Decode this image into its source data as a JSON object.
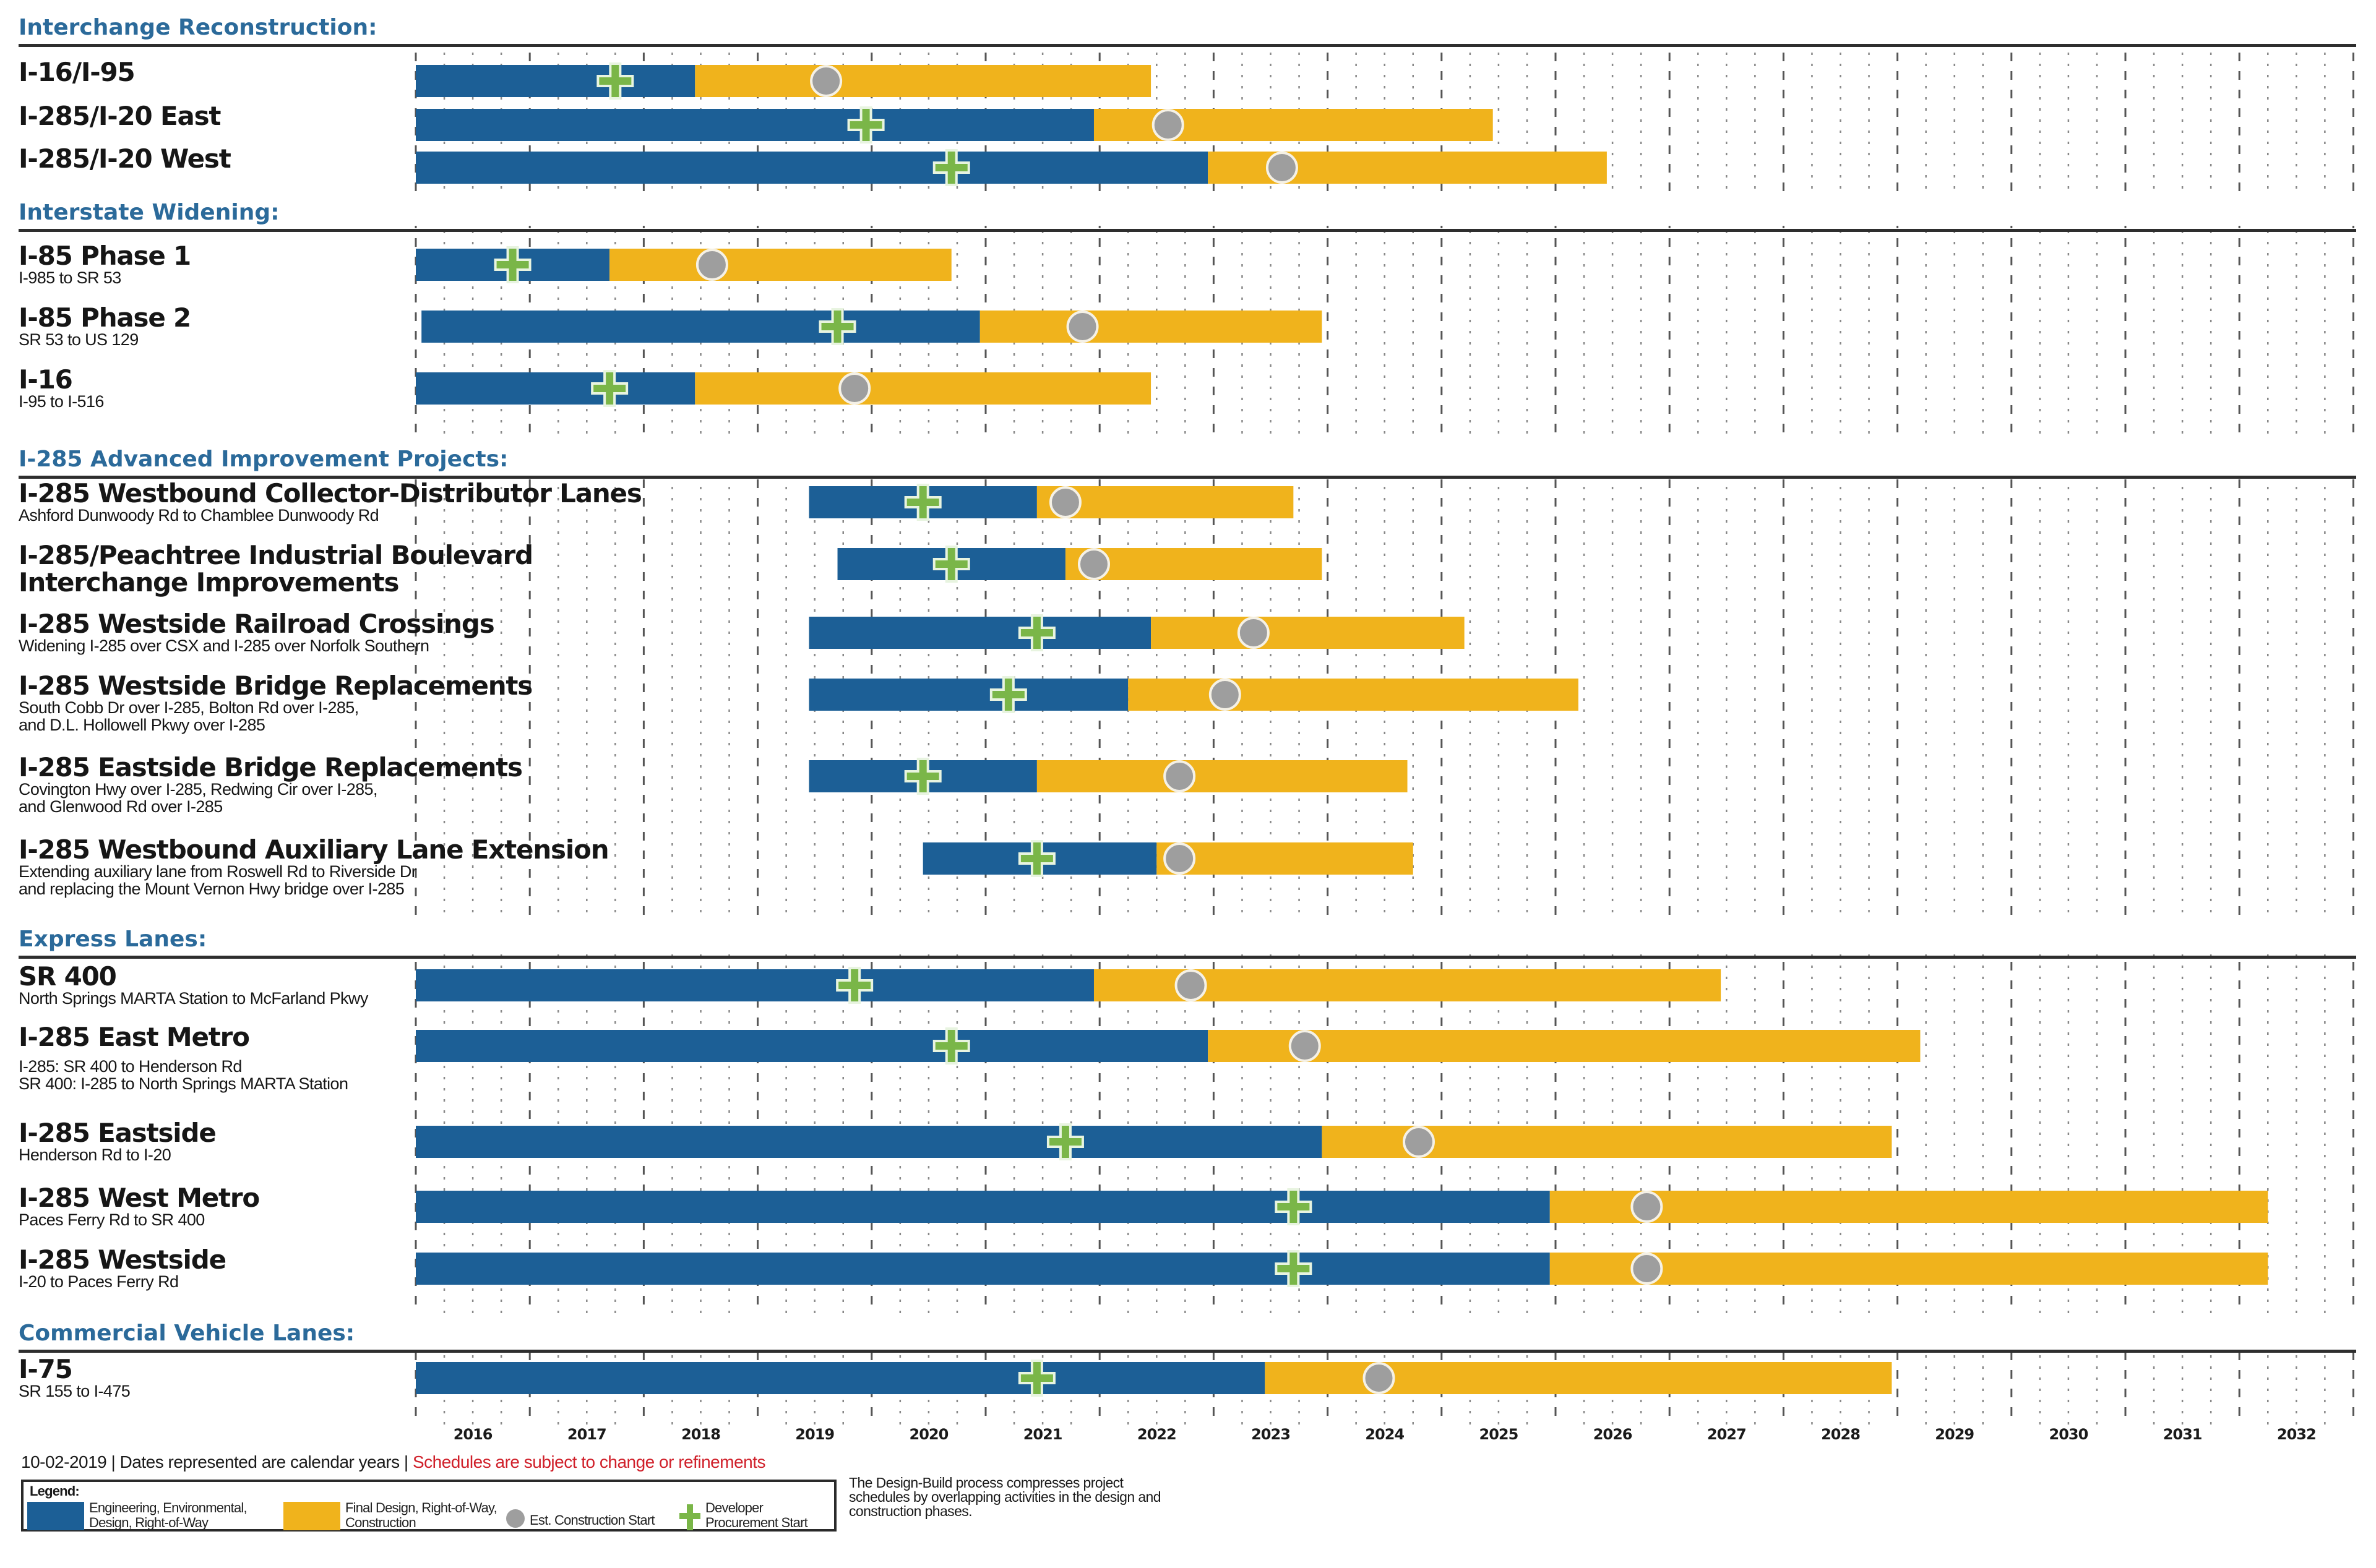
{
  "chart_data": {
    "type": "gantt",
    "title": "",
    "xlabel": "",
    "x_range": [
      2016,
      2033
    ],
    "tick_labels": [
      "2016",
      "2017",
      "2018",
      "2019",
      "2020",
      "2021",
      "2022",
      "2023",
      "2024",
      "2025",
      "2026",
      "2027",
      "2028",
      "2029",
      "2030",
      "2031",
      "2032"
    ],
    "grid": true,
    "legend_placement": "bottom-left",
    "phase_colors": {
      "engineering": "#1c5f96",
      "construction": "#f0b31c",
      "procurement_marker": "#7ab648",
      "construction_start_marker": "#9e9e9e",
      "section_title": "#2b6a9a"
    },
    "sections": [
      {
        "title": "Interchange Reconstruction:",
        "projects": [
          {
            "name": "I-16/I-95",
            "sub": [],
            "start": 2016.0,
            "eng_end": 2018.45,
            "end": 2022.45,
            "procurement": 2017.75,
            "construction_start": 2019.6
          },
          {
            "name": "I-285/I-20 East",
            "sub": [],
            "start": 2016.0,
            "eng_end": 2021.95,
            "end": 2025.45,
            "procurement": 2019.95,
            "construction_start": 2022.6
          },
          {
            "name": "I-285/I-20 West",
            "sub": [],
            "start": 2016.0,
            "eng_end": 2022.95,
            "end": 2026.45,
            "procurement": 2020.7,
            "construction_start": 2023.6
          }
        ]
      },
      {
        "title": "Interstate Widening:",
        "projects": [
          {
            "name": "I-85 Phase 1",
            "sub": [
              "I-985 to SR 53"
            ],
            "start": 2016.0,
            "eng_end": 2017.7,
            "end": 2020.7,
            "procurement": 2016.85,
            "construction_start": 2018.6
          },
          {
            "name": "I-85 Phase 2",
            "sub": [
              "SR 53 to US 129"
            ],
            "start": 2016.05,
            "eng_end": 2020.95,
            "end": 2023.95,
            "procurement": 2019.7,
            "construction_start": 2021.85
          },
          {
            "name": "I-16",
            "sub": [
              "I-95 to I-516"
            ],
            "start": 2016.0,
            "eng_end": 2018.45,
            "end": 2022.45,
            "procurement": 2017.7,
            "construction_start": 2019.85
          }
        ]
      },
      {
        "title": "I-285 Advanced Improvement Projects:",
        "projects": [
          {
            "name": "I-285 Westbound Collector-Distributor Lanes",
            "sub": [
              "Ashford Dunwoody Rd to Chamblee Dunwoody Rd"
            ],
            "start": 2019.45,
            "eng_end": 2021.45,
            "end": 2023.7,
            "procurement": 2020.45,
            "construction_start": 2021.7
          },
          {
            "name": "I-285/Peachtree Industrial Boulevard",
            "name2": "Interchange Improvements",
            "sub": [],
            "start": 2019.7,
            "eng_end": 2021.7,
            "end": 2023.95,
            "procurement": 2020.7,
            "construction_start": 2021.95
          },
          {
            "name": "I-285 Westside Railroad Crossings",
            "sub": [
              "Widening I-285 over CSX and I-285 over Norfolk Southern"
            ],
            "start": 2019.45,
            "eng_end": 2022.45,
            "end": 2025.2,
            "procurement": 2021.45,
            "construction_start": 2023.35
          },
          {
            "name": "I-285 Westside Bridge Replacements",
            "sub": [
              "South Cobb Dr over I-285, Bolton Rd over I-285,",
              "and D.L. Hollowell Pkwy over I-285"
            ],
            "start": 2019.45,
            "eng_end": 2022.25,
            "end": 2026.2,
            "procurement": 2021.2,
            "construction_start": 2023.1
          },
          {
            "name": "I-285 Eastside Bridge Replacements",
            "sub": [
              "Covington Hwy over I-285, Redwing Cir over I-285,",
              "and Glenwood Rd over I-285"
            ],
            "start": 2019.45,
            "eng_end": 2021.45,
            "end": 2024.7,
            "procurement": 2020.45,
            "construction_start": 2022.7
          },
          {
            "name": "I-285 Westbound Auxiliary Lane Extension",
            "sub": [
              "Extending auxiliary lane from Roswell Rd to Riverside Dr",
              "and replacing the Mount Vernon Hwy bridge over I-285"
            ],
            "start": 2020.45,
            "eng_end": 2022.5,
            "end": 2024.75,
            "procurement": 2021.45,
            "construction_start": 2022.7
          }
        ]
      },
      {
        "title": "Express Lanes:",
        "projects": [
          {
            "name": "SR 400",
            "sub": [
              "North Springs MARTA Station to McFarland Pkwy"
            ],
            "start": 2016.0,
            "eng_end": 2021.95,
            "end": 2027.45,
            "procurement": 2019.85,
            "construction_start": 2022.8
          },
          {
            "name": "I-285 East Metro",
            "sub": [
              "I-285: SR 400 to Henderson Rd",
              "SR 400: I-285 to North Springs MARTA Station"
            ],
            "start": 2016.0,
            "eng_end": 2022.95,
            "end": 2029.2,
            "procurement": 2020.7,
            "construction_start": 2023.8
          },
          {
            "name": "I-285 Eastside",
            "sub": [
              "Henderson Rd to I-20"
            ],
            "start": 2016.0,
            "eng_end": 2023.95,
            "end": 2028.95,
            "procurement": 2021.7,
            "construction_start": 2024.8
          },
          {
            "name": "I-285 West Metro",
            "sub": [
              "Paces Ferry Rd to SR 400"
            ],
            "start": 2016.0,
            "eng_end": 2025.95,
            "end": 2032.25,
            "procurement": 2023.7,
            "construction_start": 2026.8
          },
          {
            "name": "I-285 Westside",
            "sub": [
              "I-20 to Paces Ferry Rd"
            ],
            "start": 2016.0,
            "eng_end": 2025.95,
            "end": 2032.25,
            "procurement": 2023.7,
            "construction_start": 2026.8
          }
        ]
      },
      {
        "title": "Commercial Vehicle Lanes:",
        "projects": [
          {
            "name": "I-75",
            "sub": [
              "SR 155 to I-475"
            ],
            "start": 2016.0,
            "eng_end": 2023.45,
            "end": 2028.95,
            "procurement": 2021.45,
            "construction_start": 2024.45
          }
        ]
      }
    ]
  },
  "footer": {
    "date": "10-02-2019",
    "sep": " | ",
    "note1": "Dates represented are calendar years",
    "note2": "Schedules are subject to change or refinements"
  },
  "legend": {
    "title": "Legend:",
    "items": [
      {
        "line1": "Engineering, Environmental,",
        "line2": "Design, Right-of-Way"
      },
      {
        "line1": "Final Design, Right-of-Way,",
        "line2": "Construction"
      },
      {
        "line1": "Est. Construction Start"
      },
      {
        "line1": "Developer",
        "line2": "Procurement Start"
      }
    ]
  },
  "design_build_note": "The Design-Build process compresses project schedules by overlapping activities in the design and construction phases."
}
